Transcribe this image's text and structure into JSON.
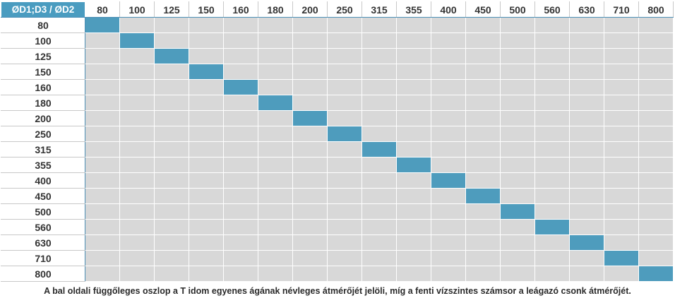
{
  "table": {
    "corner_label": "ØD1;D3 / ØD2",
    "column_headers": [
      "80",
      "100",
      "125",
      "150",
      "160",
      "180",
      "200",
      "250",
      "315",
      "355",
      "400",
      "450",
      "500",
      "560",
      "630",
      "710",
      "800"
    ],
    "row_headers": [
      "80",
      "100",
      "125",
      "150",
      "160",
      "180",
      "200",
      "250",
      "315",
      "355",
      "400",
      "450",
      "500",
      "560",
      "630",
      "710",
      "800"
    ],
    "available_combinations": [
      [
        "80",
        "80"
      ],
      [
        "100",
        "100"
      ],
      [
        "125",
        "125"
      ],
      [
        "150",
        "150"
      ],
      [
        "160",
        "160"
      ],
      [
        "180",
        "180"
      ],
      [
        "200",
        "200"
      ],
      [
        "250",
        "250"
      ],
      [
        "315",
        "315"
      ],
      [
        "355",
        "355"
      ],
      [
        "400",
        "400"
      ],
      [
        "450",
        "450"
      ],
      [
        "500",
        "500"
      ],
      [
        "560",
        "560"
      ],
      [
        "630",
        "630"
      ],
      [
        "710",
        "710"
      ],
      [
        "800",
        "800"
      ]
    ]
  },
  "colors": {
    "header_fill": "#4a9cc0",
    "available_fill": "#4e9cbd",
    "empty_fill": "#d8d8d8"
  },
  "caption": "A bal oldali függőleges oszlop a T idom egyenes ágának névleges átmérőjét jelöli, míg a fenti vízszintes számsor a leágazó csonk átmérőjét."
}
